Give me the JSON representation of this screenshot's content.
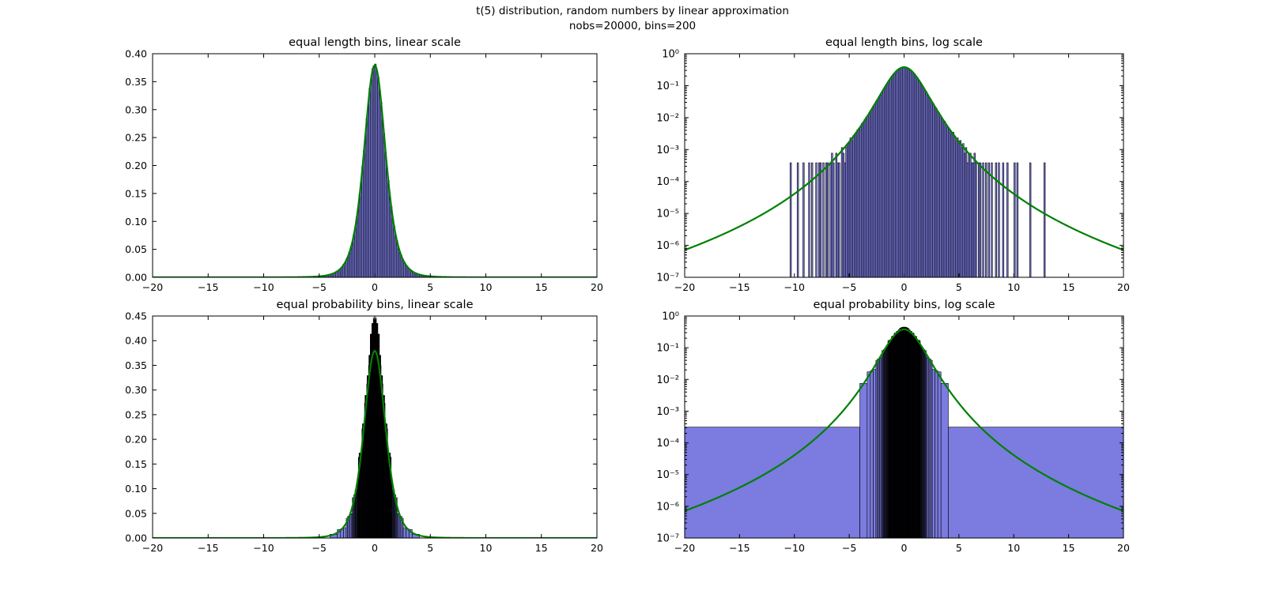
{
  "figure": {
    "title_line1": "t(5) distribution, random numbers by linear approximation",
    "title_line2": "nobs=20000, bins=200",
    "background": "#ffffff",
    "nobs": 20000,
    "bins": 200
  },
  "style": {
    "bar_fill": "#7b7be0",
    "bar_edge": "#000000",
    "curve_color": "#008000",
    "axes_color": "#000000"
  },
  "axes_shared": {
    "xtick_values": [
      -20,
      -15,
      -10,
      -5,
      0,
      5,
      10,
      15,
      20
    ],
    "xtick_labels": [
      "−20",
      "−15",
      "−10",
      "−5",
      "0",
      "5",
      "10",
      "15",
      "20"
    ]
  },
  "curve": {
    "name": "t(5) probability density",
    "df": 5,
    "coef": 0.37961
  },
  "histograms": {
    "equal_length": {
      "start": -13,
      "bin_width": 0.13,
      "nobs": 20000,
      "counts": [
        0,
        0,
        0,
        0,
        0,
        0,
        0,
        0,
        0,
        0,
        0,
        0,
        0,
        0,
        0,
        0,
        0,
        0,
        0,
        0,
        1,
        0,
        0,
        0,
        0,
        1,
        0,
        0,
        0,
        1,
        0,
        0,
        0,
        1,
        0,
        1,
        0,
        0,
        1,
        0,
        1,
        1,
        0,
        1,
        0,
        1,
        1,
        0,
        1,
        2,
        1,
        0,
        2,
        1,
        1,
        0,
        3,
        2,
        1,
        3,
        4,
        4,
        6,
        5,
        7,
        8,
        9,
        11,
        12,
        13,
        17,
        18,
        23,
        27,
        29,
        35,
        43,
        49,
        61,
        69,
        85,
        96,
        119,
        140,
        164,
        199,
        231,
        280,
        321,
        385,
        441,
        516,
        589,
        655,
        741,
        805,
        880,
        921,
        970,
        980,
        992,
        961,
        930,
        869,
        815,
        731,
        668,
        579,
        508,
        450,
        375,
        330,
        272,
        238,
        193,
        170,
        135,
        114,
        101,
        80,
        72,
        57,
        52,
        40,
        37,
        31,
        24,
        21,
        20,
        15,
        13,
        11,
        10,
        8,
        9,
        7,
        5,
        6,
        4,
        5,
        3,
        4,
        2,
        3,
        1,
        2,
        2,
        1,
        1,
        2,
        1,
        0,
        1,
        1,
        0,
        1,
        0,
        1,
        0,
        1,
        0,
        1,
        0,
        0,
        1,
        0,
        1,
        0,
        0,
        1,
        0,
        0,
        1,
        0,
        0,
        0,
        0,
        1,
        0,
        1,
        0,
        0,
        0,
        0,
        0,
        0,
        0,
        0,
        1,
        0,
        0,
        0,
        0,
        0,
        0,
        0,
        0,
        0,
        1,
        0
      ]
    },
    "equal_probability": {
      "outer_left_edge": -20,
      "outer_right_edge": 20,
      "obs_per_bin": 100,
      "nobs": 20000,
      "inner_positive_edges": [
        0.0142,
        0.0254,
        0.0406,
        0.0519,
        0.0671,
        0.0784,
        0.0937,
        0.105,
        0.1203,
        0.1315,
        0.1465,
        0.158,
        0.1735,
        0.185,
        0.2005,
        0.212,
        0.2275,
        0.239,
        0.2545,
        0.266,
        0.2821,
        0.2942,
        0.3103,
        0.3224,
        0.3385,
        0.3506,
        0.3667,
        0.3788,
        0.3949,
        0.407,
        0.4239,
        0.4374,
        0.4541,
        0.4676,
        0.4843,
        0.4978,
        0.5145,
        0.528,
        0.5447,
        0.559,
        0.5766,
        0.5918,
        0.6102,
        0.6254,
        0.6438,
        0.659,
        0.6774,
        0.6926,
        0.711,
        0.727,
        0.7473,
        0.7646,
        0.7859,
        0.8032,
        0.8245,
        0.8418,
        0.8631,
        0.8804,
        0.9017,
        0.92,
        0.9446,
        0.9662,
        0.9918,
        1.0134,
        1.039,
        1.0606,
        1.0862,
        1.1078,
        1.1334,
        1.156,
        1.1895,
        1.2185,
        1.2535,
        1.2825,
        1.3175,
        1.3465,
        1.3815,
        1.4105,
        1.4455,
        1.476,
        1.522,
        1.564,
        1.616,
        1.662,
        1.718,
        1.769,
        1.831,
        1.888,
        1.954,
        2.015,
        2.117,
        2.218,
        2.332,
        2.446,
        2.571,
        2.811,
        3.076,
        3.365,
        4.032
      ]
    }
  },
  "chart_data": [
    {
      "type": "histogram+line",
      "title": "equal length bins, linear scale",
      "hist": "equal_length",
      "xscale": "linear",
      "yscale": "linear",
      "xlim": [
        -20,
        20
      ],
      "ylim": [
        0,
        0.4
      ],
      "ytick_values": [
        0,
        0.05,
        0.1,
        0.15,
        0.2,
        0.25,
        0.3,
        0.35,
        0.4
      ],
      "ytick_labels": [
        "0.00",
        "0.05",
        "0.10",
        "0.15",
        "0.20",
        "0.25",
        "0.30",
        "0.35",
        "0.40"
      ]
    },
    {
      "type": "histogram+line",
      "title": "equal length bins, log scale",
      "hist": "equal_length",
      "xscale": "linear",
      "yscale": "log",
      "xlim": [
        -20,
        20
      ],
      "ylim": [
        1e-07,
        1
      ],
      "ytick_values": [
        1,
        0.1,
        0.01,
        0.001,
        0.0001,
        1e-05,
        1e-06,
        1e-07
      ],
      "ytick_labels": [
        "10⁰",
        "10⁻¹",
        "10⁻²",
        "10⁻³",
        "10⁻⁴",
        "10⁻⁵",
        "10⁻⁶",
        "10⁻⁷"
      ]
    },
    {
      "type": "histogram+line",
      "title": "equal probability bins, linear scale",
      "hist": "equal_probability",
      "xscale": "linear",
      "yscale": "linear",
      "xlim": [
        -20,
        20
      ],
      "ylim": [
        0,
        0.45
      ],
      "ytick_values": [
        0,
        0.05,
        0.1,
        0.15,
        0.2,
        0.25,
        0.3,
        0.35,
        0.4,
        0.45
      ],
      "ytick_labels": [
        "0.00",
        "0.05",
        "0.10",
        "0.15",
        "0.20",
        "0.25",
        "0.30",
        "0.35",
        "0.40",
        "0.45"
      ]
    },
    {
      "type": "histogram+line",
      "title": "equal probability bins, log scale",
      "hist": "equal_probability",
      "xscale": "linear",
      "yscale": "log",
      "xlim": [
        -20,
        20
      ],
      "ylim": [
        1e-07,
        1
      ],
      "ytick_values": [
        1,
        0.1,
        0.01,
        0.001,
        0.0001,
        1e-05,
        1e-06,
        1e-07
      ],
      "ytick_labels": [
        "10⁰",
        "10⁻¹",
        "10⁻²",
        "10⁻³",
        "10⁻⁴",
        "10⁻⁵",
        "10⁻⁶",
        "10⁻⁷"
      ]
    }
  ]
}
